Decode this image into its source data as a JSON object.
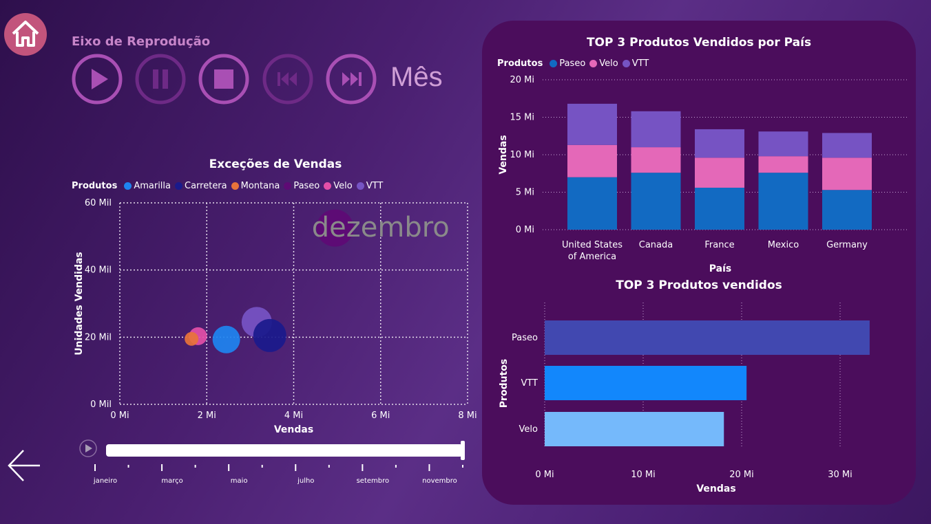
{
  "nav": {
    "home_icon": "home-icon",
    "back_icon": "arrow-left-icon"
  },
  "playback": {
    "title": "Eixo de Reprodução",
    "controls": [
      "play-icon",
      "pause-icon",
      "stop-icon",
      "skip-back-icon",
      "skip-forward-icon"
    ],
    "mode_label": "Mês"
  },
  "colors": {
    "Amarilla": "#1e84f0",
    "Carretera": "#1a1a8c",
    "Montana": "#e8733a",
    "Paseo": "#5e0a75",
    "Velo": "#e44fa8",
    "VTT": "#7654c4",
    "top3_paseo": "#126ac2",
    "top3_velo": "#e468b8",
    "top3_vtt": "#7653c3",
    "bar_paseo": "#4148b0",
    "bar_vtt": "#1287fc",
    "bar_velo": "#75b9fb"
  },
  "scatter": {
    "title": "Exceções de Vendas",
    "legend_label": "Produtos",
    "watermark": "dezembro",
    "chart_data": {
      "type": "scatter",
      "title": "Exceções de Vendas",
      "xlabel": "Vendas",
      "ylabel": "Unidades Vendidas",
      "xlim": [
        0,
        8
      ],
      "ylim": [
        0,
        60
      ],
      "x_unit": "Mi",
      "y_unit": "Mil",
      "x_ticks": [
        "0 Mi",
        "2 Mi",
        "4 Mi",
        "6 Mi",
        "8 Mi"
      ],
      "y_ticks": [
        "0 Mil",
        "20 Mil",
        "40 Mil",
        "60 Mil"
      ],
      "series": [
        {
          "name": "Amarilla",
          "x": 2.45,
          "y": 19.3,
          "size": 20
        },
        {
          "name": "Carretera",
          "x": 3.45,
          "y": 20.5,
          "size": 24
        },
        {
          "name": "Montana",
          "x": 1.65,
          "y": 19.5,
          "size": 10
        },
        {
          "name": "Paseo",
          "x": 4.95,
          "y": 52.5,
          "size": 27
        },
        {
          "name": "Velo",
          "x": 1.8,
          "y": 20.3,
          "size": 13
        },
        {
          "name": "VTT",
          "x": 3.15,
          "y": 24.5,
          "size": 22
        }
      ],
      "grid": true
    }
  },
  "timeline": {
    "play_icon": "play-icon",
    "months": [
      "janeiro",
      "março",
      "maio",
      "julho",
      "setembro",
      "novembro"
    ],
    "position": 1.0
  },
  "country_chart": {
    "title": "TOP 3 Produtos Vendidos por País",
    "legend_label": "Produtos",
    "chart_data": {
      "type": "bar",
      "stacked": true,
      "title": "TOP 3 Produtos Vendidos por País",
      "xlabel": "País",
      "ylabel": "Vendas",
      "ylim": [
        0,
        20
      ],
      "y_ticks": [
        "0 Mi",
        "5 Mi",
        "10 Mi",
        "15 Mi",
        "20 Mi"
      ],
      "categories": [
        "United States of America",
        "Canada",
        "France",
        "Mexico",
        "Germany"
      ],
      "category_lines": [
        [
          "United States",
          "of America"
        ],
        [
          "Canada"
        ],
        [
          "France"
        ],
        [
          "Mexico"
        ],
        [
          "Germany"
        ]
      ],
      "series": [
        {
          "name": "Paseo",
          "values": [
            7.0,
            7.6,
            5.6,
            7.6,
            5.3
          ]
        },
        {
          "name": "Velo",
          "values": [
            4.3,
            3.4,
            4.0,
            2.2,
            4.3
          ]
        },
        {
          "name": "VTT",
          "values": [
            5.5,
            4.8,
            3.8,
            3.3,
            3.3
          ]
        }
      ],
      "grid": true
    }
  },
  "products_chart": {
    "title": "TOP 3 Produtos vendidos",
    "chart_data": {
      "type": "bar",
      "orientation": "horizontal",
      "title": "TOP 3 Produtos vendidos",
      "xlabel": "Vendas",
      "ylabel": "Produtos",
      "xlim": [
        0,
        35
      ],
      "x_ticks": [
        "0 Mi",
        "10 Mi",
        "20 Mi",
        "30 Mi"
      ],
      "categories": [
        "Paseo",
        "VTT",
        "Velo"
      ],
      "values": [
        33.0,
        20.5,
        18.2
      ],
      "grid": true
    }
  }
}
